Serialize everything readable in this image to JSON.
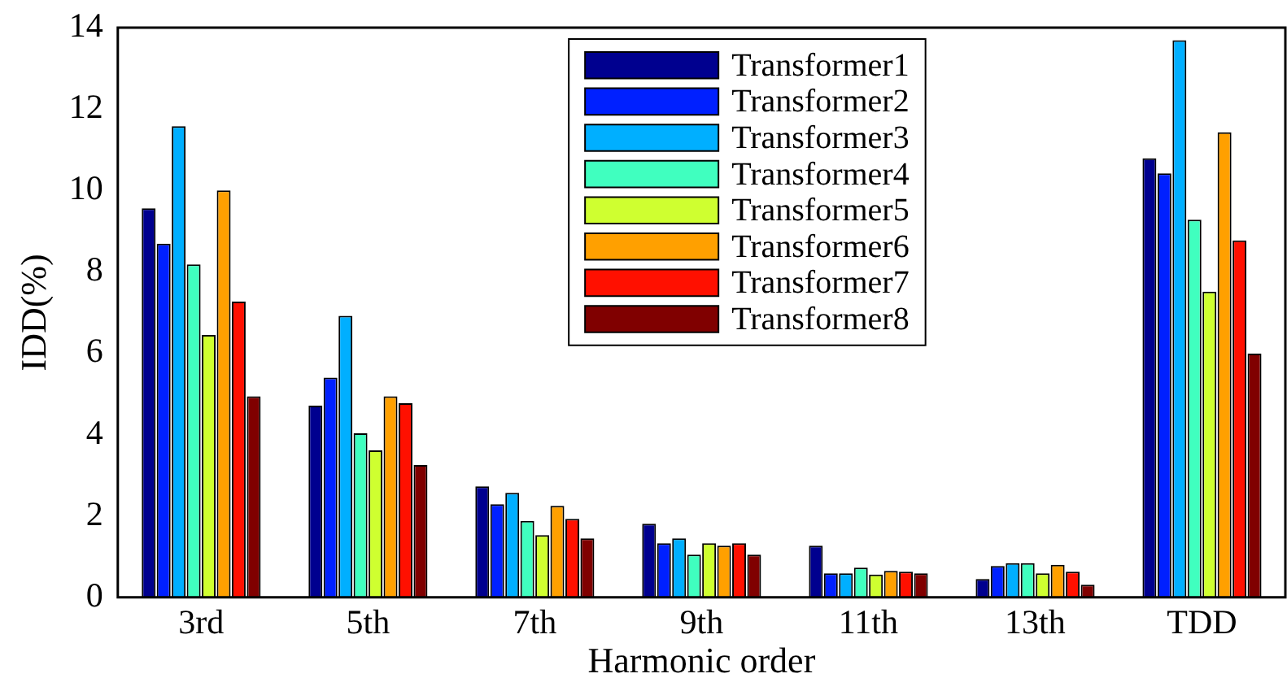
{
  "chart_data": {
    "type": "bar",
    "xlabel": "Harmonic order",
    "ylabel": "IDD(%)",
    "categories": [
      "3rd",
      "5th",
      "7th",
      "9th",
      "11th",
      "13th",
      "TDD"
    ],
    "series": [
      {
        "name": "Transformer1",
        "color": "#00008f",
        "values": [
          9.56,
          4.71,
          2.73,
          1.81,
          1.27,
          0.45,
          10.79
        ]
      },
      {
        "name": "Transformer2",
        "color": "#0020ff",
        "values": [
          8.69,
          5.4,
          2.29,
          1.33,
          0.59,
          0.77,
          10.42
        ]
      },
      {
        "name": "Transformer3",
        "color": "#00afff",
        "values": [
          11.58,
          6.92,
          2.57,
          1.45,
          0.59,
          0.84,
          13.69
        ]
      },
      {
        "name": "Transformer4",
        "color": "#40ffbf",
        "values": [
          8.18,
          4.03,
          1.88,
          1.05,
          0.73,
          0.84,
          9.28
        ]
      },
      {
        "name": "Transformer5",
        "color": "#cfff30",
        "values": [
          6.45,
          3.61,
          1.53,
          1.33,
          0.56,
          0.59,
          7.51
        ]
      },
      {
        "name": "Transformer6",
        "color": "#ffa000",
        "values": [
          10.0,
          4.94,
          2.25,
          1.27,
          0.65,
          0.8,
          11.43
        ]
      },
      {
        "name": "Transformer7",
        "color": "#ff1000",
        "values": [
          7.27,
          4.77,
          1.93,
          1.33,
          0.63,
          0.63,
          8.77
        ]
      },
      {
        "name": "Transformer8",
        "color": "#800000",
        "values": [
          4.94,
          3.25,
          1.45,
          1.05,
          0.59,
          0.31,
          5.99
        ]
      }
    ],
    "ylim": [
      0,
      14
    ],
    "yticks": [
      0,
      2,
      4,
      6,
      8,
      10,
      12,
      14
    ],
    "grid": false,
    "legend": "top"
  }
}
